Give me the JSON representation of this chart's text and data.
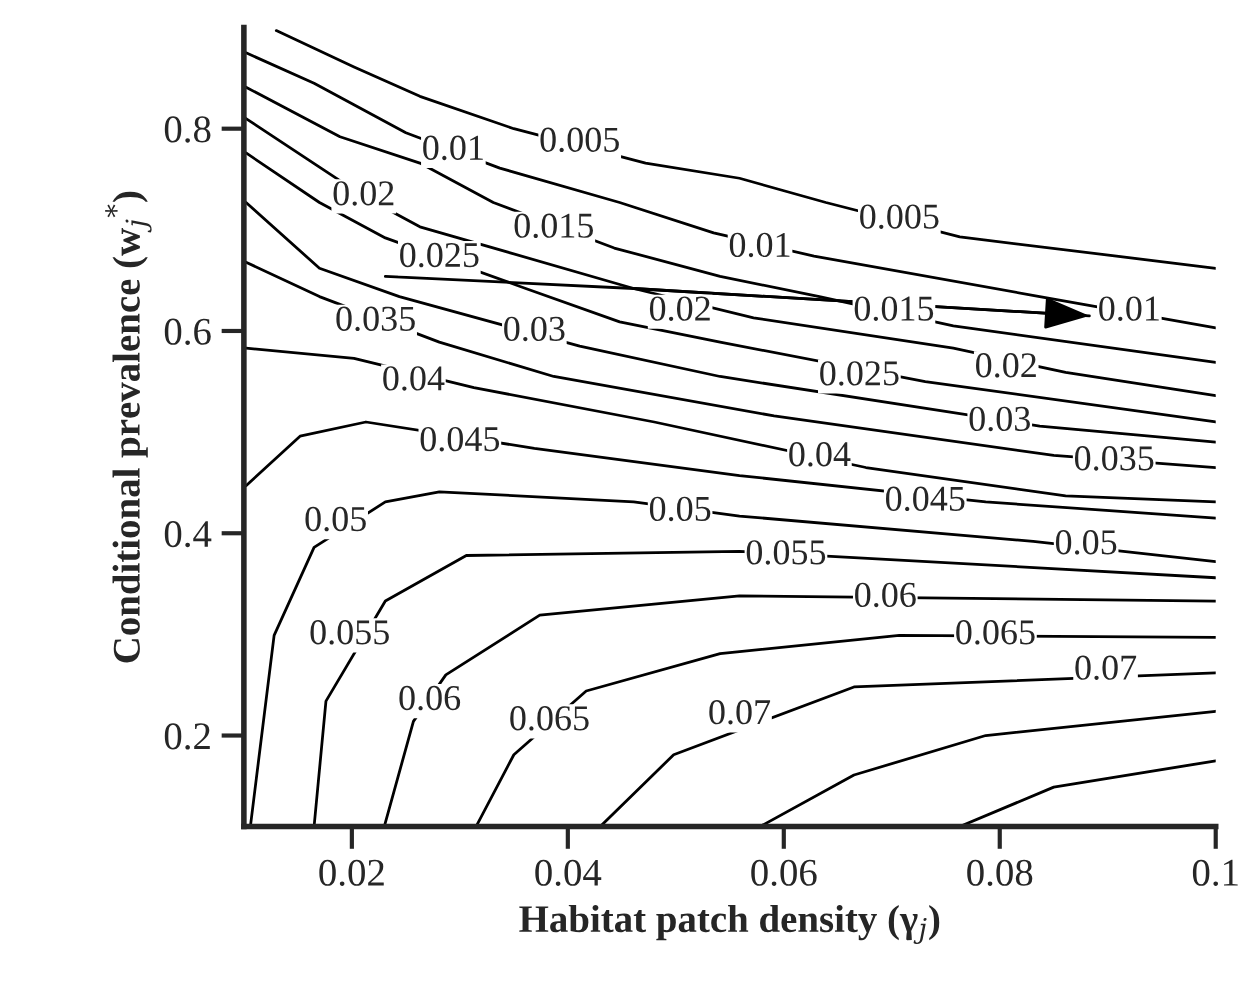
{
  "chart_data": {
    "type": "line",
    "xlabel": "Habitat patch density (γ$_{j}$)",
    "ylabel": "Conditional prevalence (w$_{j}$$^{*}$)",
    "xlim": [
      0.01,
      0.1
    ],
    "ylim": [
      0.11,
      0.9
    ],
    "xticks": [
      0.02,
      0.04,
      0.06,
      0.08,
      0.1
    ],
    "yticks": [
      0.2,
      0.4,
      0.6,
      0.8
    ],
    "grid": false,
    "marker": "none",
    "line_style": "solid",
    "series": [
      {
        "color": "#000000",
        "x": [
          0.013,
          0.0202,
          0.0263,
          0.035,
          0.0472,
          0.0559,
          0.0639,
          0.0763,
          0.1
        ],
        "values": [
          0.897,
          0.861,
          0.832,
          0.8,
          0.766,
          0.751,
          0.727,
          0.693,
          0.662
        ]
      },
      {
        "color": "#000000",
        "x": [
          0.0102,
          0.0165,
          0.025,
          0.0337,
          0.0448,
          0.0535,
          0.0628,
          0.0837,
          0.1
        ],
        "values": [
          0.875,
          0.845,
          0.796,
          0.761,
          0.727,
          0.697,
          0.674,
          0.634,
          0.603
        ]
      },
      {
        "color": "#000000",
        "x": [
          0.0102,
          0.0189,
          0.0263,
          0.0331,
          0.0443,
          0.0541,
          0.0633,
          0.0757,
          0.1
        ],
        "values": [
          0.841,
          0.792,
          0.766,
          0.727,
          0.682,
          0.654,
          0.634,
          0.605,
          0.569
        ]
      },
      {
        "color": "#000000",
        "x": [
          0.0102,
          0.0211,
          0.0263,
          0.0461,
          0.0572,
          0.0757,
          0.0861,
          0.1
        ],
        "values": [
          0.81,
          0.733,
          0.703,
          0.642,
          0.613,
          0.583,
          0.559,
          0.536
        ]
      },
      {
        "color": "#000000",
        "x": [
          0.0102,
          0.017,
          0.0231,
          0.0361,
          0.0448,
          0.0541,
          0.0731,
          0.1
        ],
        "values": [
          0.776,
          0.727,
          0.692,
          0.642,
          0.609,
          0.589,
          0.55,
          0.51
        ]
      },
      {
        "color": "#000000",
        "x": [
          0.0102,
          0.017,
          0.0244,
          0.0411,
          0.0541,
          0.0837,
          0.1
        ],
        "values": [
          0.727,
          0.662,
          0.634,
          0.585,
          0.555,
          0.506,
          0.49
        ]
      },
      {
        "color": "#000000",
        "x": [
          0.0102,
          0.017,
          0.0281,
          0.0387,
          0.0591,
          0.085,
          0.1
        ],
        "values": [
          0.668,
          0.634,
          0.589,
          0.555,
          0.516,
          0.477,
          0.465
        ]
      },
      {
        "color": "#000000",
        "x": [
          0.0102,
          0.0202,
          0.0313,
          0.048,
          0.0676,
          0.0861,
          0.1
        ],
        "values": [
          0.583,
          0.573,
          0.544,
          0.51,
          0.465,
          0.437,
          0.431
        ]
      },
      {
        "color": "#000000",
        "x": [
          0.0102,
          0.0152,
          0.0213,
          0.0369,
          0.0559,
          0.0787,
          0.1
        ],
        "values": [
          0.447,
          0.496,
          0.51,
          0.484,
          0.457,
          0.431,
          0.415
        ]
      },
      {
        "color": "#000000",
        "x": [
          0.0106,
          0.0128,
          0.0165,
          0.0231,
          0.0281,
          0.0461,
          0.0559,
          0.0831,
          0.1
        ],
        "values": [
          0.11,
          0.299,
          0.386,
          0.431,
          0.441,
          0.431,
          0.417,
          0.392,
          0.372
        ]
      },
      {
        "color": "#000000",
        "x": [
          0.0165,
          0.0176,
          0.0231,
          0.0306,
          0.0559,
          0.0665,
          0.1
        ],
        "values": [
          0.11,
          0.234,
          0.333,
          0.378,
          0.382,
          0.376,
          0.356
        ]
      },
      {
        "color": "#000000",
        "x": [
          0.023,
          0.0257,
          0.0287,
          0.0374,
          0.0559,
          0.1
        ],
        "values": [
          0.11,
          0.214,
          0.26,
          0.319,
          0.338,
          0.333
        ]
      },
      {
        "color": "#000000",
        "x": [
          0.0315,
          0.035,
          0.0417,
          0.0541,
          0.0707,
          0.1
        ],
        "values": [
          0.11,
          0.181,
          0.244,
          0.281,
          0.299,
          0.297
        ]
      },
      {
        "color": "#000000",
        "x": [
          0.043,
          0.0498,
          0.0665,
          0.1
        ],
        "values": [
          0.11,
          0.181,
          0.248,
          0.262
        ]
      },
      {
        "color": "#000000",
        "x": [
          0.0578,
          0.0665,
          0.0787,
          0.1
        ],
        "values": [
          0.11,
          0.161,
          0.2,
          0.224
        ]
      },
      {
        "color": "#000000",
        "x": [
          0.0763,
          0.085,
          0.1
        ],
        "values": [
          0.11,
          0.149,
          0.175
        ]
      },
      {
        "color": "#000000",
        "x": [
          0.0231,
          0.0461,
          0.0883
        ],
        "values": [
          0.654,
          0.642,
          0.615
        ]
      }
    ],
    "annotations": [
      {
        "text": "0.005",
        "x": 0.0411,
        "y": 0.786
      },
      {
        "text": "0.005",
        "x": 0.0707,
        "y": 0.71
      },
      {
        "text": "0.01",
        "x": 0.0294,
        "y": 0.778
      },
      {
        "text": "0.01",
        "x": 0.0578,
        "y": 0.682
      },
      {
        "text": "0.01",
        "x": 0.092,
        "y": 0.619
      },
      {
        "text": "0.015",
        "x": 0.0387,
        "y": 0.701
      },
      {
        "text": "0.015",
        "x": 0.0702,
        "y": 0.619
      },
      {
        "text": "0.02",
        "x": 0.0211,
        "y": 0.733
      },
      {
        "text": "0.02",
        "x": 0.0504,
        "y": 0.619
      },
      {
        "text": "0.02",
        "x": 0.0806,
        "y": 0.563
      },
      {
        "text": "0.025",
        "x": 0.0281,
        "y": 0.672
      },
      {
        "text": "0.025",
        "x": 0.067,
        "y": 0.555
      },
      {
        "text": "0.03",
        "x": 0.0369,
        "y": 0.599
      },
      {
        "text": "0.03",
        "x": 0.08,
        "y": 0.51
      },
      {
        "text": "0.035",
        "x": 0.0222,
        "y": 0.609
      },
      {
        "text": "0.035",
        "x": 0.0906,
        "y": 0.471
      },
      {
        "text": "0.04",
        "x": 0.0257,
        "y": 0.55
      },
      {
        "text": "0.04",
        "x": 0.0633,
        "y": 0.475
      },
      {
        "text": "0.045",
        "x": 0.03,
        "y": 0.49
      },
      {
        "text": "0.045",
        "x": 0.0731,
        "y": 0.431
      },
      {
        "text": "0.05",
        "x": 0.0185,
        "y": 0.411
      },
      {
        "text": "0.05",
        "x": 0.0504,
        "y": 0.421
      },
      {
        "text": "0.05",
        "x": 0.088,
        "y": 0.388
      },
      {
        "text": "0.055",
        "x": 0.0198,
        "y": 0.299
      },
      {
        "text": "0.055",
        "x": 0.0602,
        "y": 0.378
      },
      {
        "text": "0.06",
        "x": 0.0272,
        "y": 0.234
      },
      {
        "text": "0.06",
        "x": 0.0694,
        "y": 0.336
      },
      {
        "text": "0.065",
        "x": 0.0383,
        "y": 0.214
      },
      {
        "text": "0.065",
        "x": 0.0796,
        "y": 0.299
      },
      {
        "text": "0.07",
        "x": 0.0559,
        "y": 0.22
      },
      {
        "text": "0.07",
        "x": 0.0898,
        "y": 0.264
      }
    ]
  }
}
